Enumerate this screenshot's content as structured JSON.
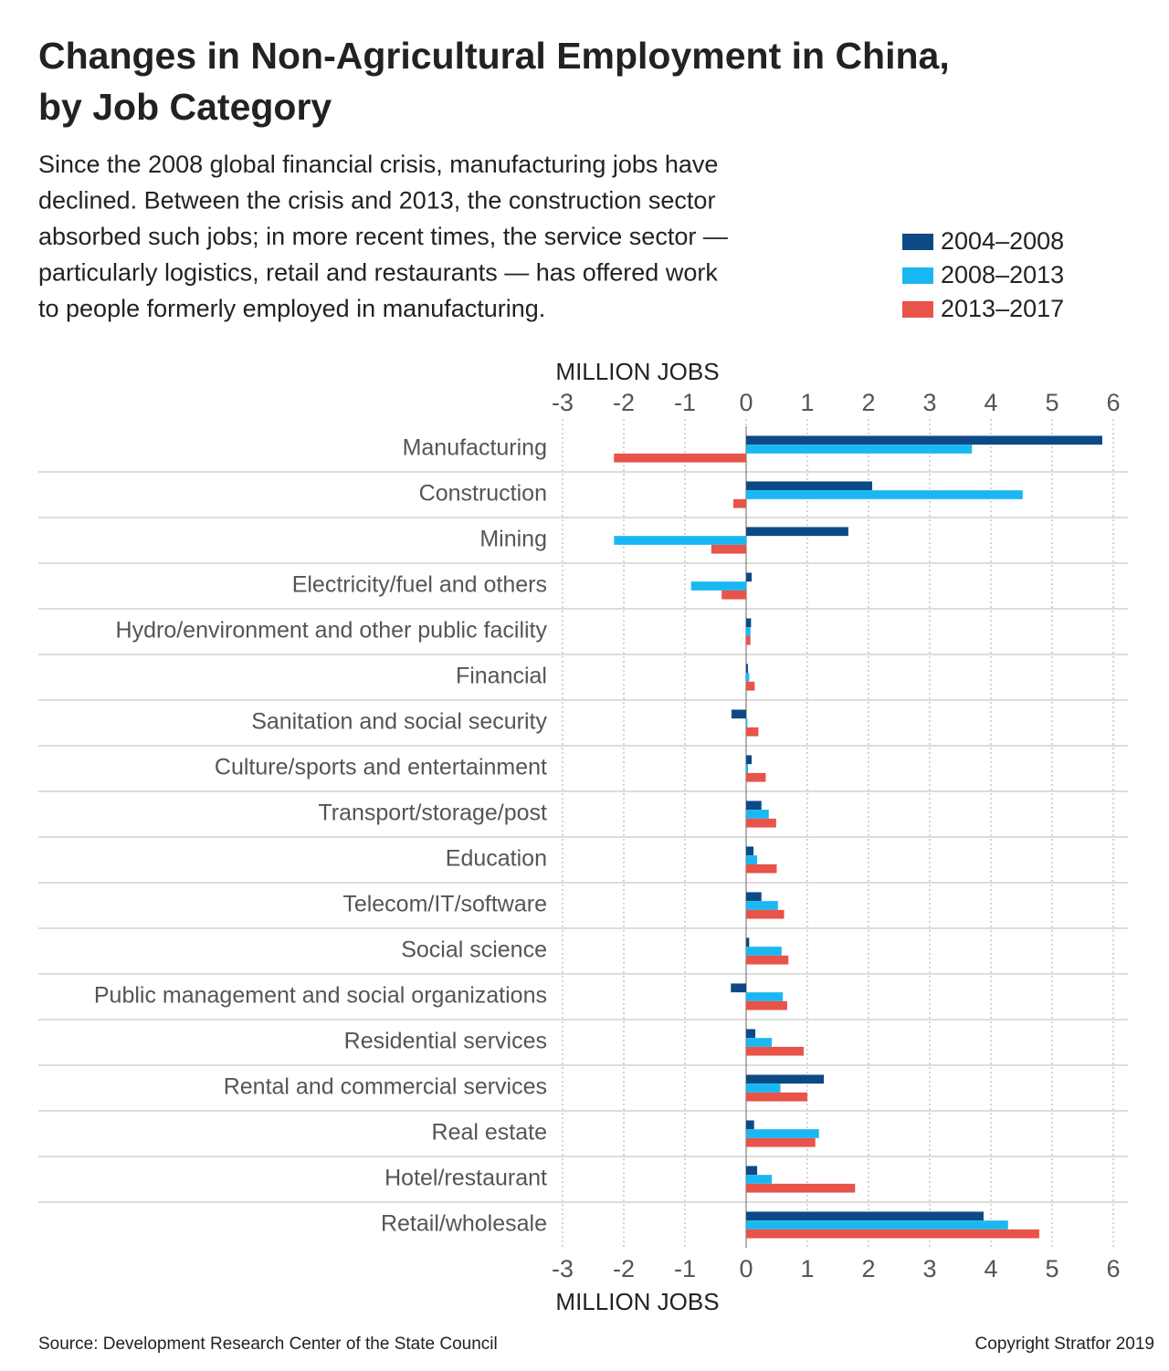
{
  "chart_data": {
    "type": "bar",
    "orientation": "horizontal",
    "title": [
      "Changes in Non-Agricultural Employment in China,",
      "by Job Category"
    ],
    "subtitle": [
      "Since the 2008 global financial crisis, manufacturing jobs have",
      "declined. Between the crisis and 2013, the construction sector",
      "absorbed such jobs; in more recent times, the service sector —",
      "particularly logistics, retail and restaurants — has offered work",
      "to people formerly employed in manufacturing."
    ],
    "x_label": "MILLION JOBS",
    "categories": [
      "Manufacturing",
      "Construction",
      "Mining",
      "Electricity/fuel and others",
      "Hydro/environment and other public facility",
      "Financial",
      "Sanitation and social security",
      "Culture/sports and entertainment",
      "Transport/storage/post",
      "Education",
      "Telecom/IT/software",
      "Social science",
      "Public management and social organizations",
      "Residential services",
      "Rental and commercial services",
      "Real estate",
      "Hotel/restaurant",
      "Retail/wholesale"
    ],
    "series": [
      {
        "name": "2004–2008",
        "color": "#0d4a85",
        "values": [
          5.82,
          2.06,
          1.67,
          0.09,
          0.08,
          0.03,
          -0.24,
          0.09,
          0.25,
          0.12,
          0.25,
          0.05,
          -0.25,
          0.15,
          1.27,
          0.13,
          0.18,
          3.88
        ]
      },
      {
        "name": "2008–2013",
        "color": "#1ab8f2",
        "values": [
          3.69,
          4.52,
          -2.16,
          -0.9,
          0.07,
          0.05,
          0.02,
          0.03,
          0.37,
          0.18,
          0.52,
          0.58,
          0.6,
          0.42,
          0.56,
          1.19,
          0.42,
          4.28
        ]
      },
      {
        "name": "2013–2017",
        "color": "#e8534a",
        "values": [
          -2.16,
          -0.21,
          -0.57,
          -0.4,
          0.07,
          0.14,
          0.2,
          0.32,
          0.49,
          0.5,
          0.62,
          0.69,
          0.67,
          0.94,
          1.0,
          1.13,
          1.78,
          4.79
        ]
      }
    ],
    "xlim": [
      -3,
      6
    ],
    "xticks": [
      -3,
      -2,
      -1,
      0,
      1,
      2,
      3,
      4,
      5,
      6
    ],
    "grid": true,
    "legend_position": "top-right",
    "source": "Source: Development Research Center of the State Council",
    "copyright": "Copyright Stratfor 2019"
  }
}
